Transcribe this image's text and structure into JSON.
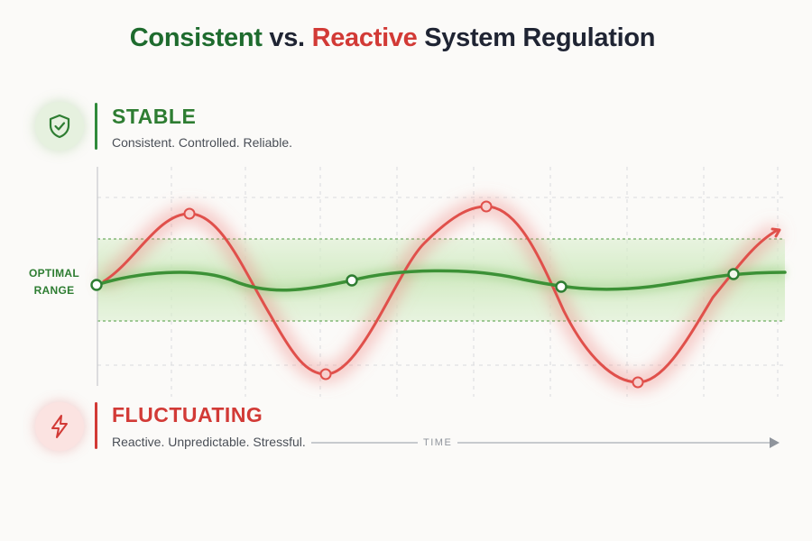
{
  "title": {
    "word_consistent": "Consistent",
    "word_vs": "vs.",
    "word_reactive": "Reactive",
    "word_rest": "System Regulation"
  },
  "stable": {
    "icon": "shield-check-icon",
    "heading": "STABLE",
    "subtitle": "Consistent. Controlled. Reliable.",
    "color": "#2e7d32"
  },
  "fluctuating": {
    "icon": "lightning-bolt-icon",
    "heading": "FLUCTUATING",
    "subtitle": "Reactive. Unpredictable. Stressful.",
    "color": "#d23a36"
  },
  "optimal_range": {
    "line1": "OPTIMAL",
    "line2": "RANGE",
    "color": "#c9e7b8"
  },
  "axis": {
    "x_label": "TIME"
  }
}
